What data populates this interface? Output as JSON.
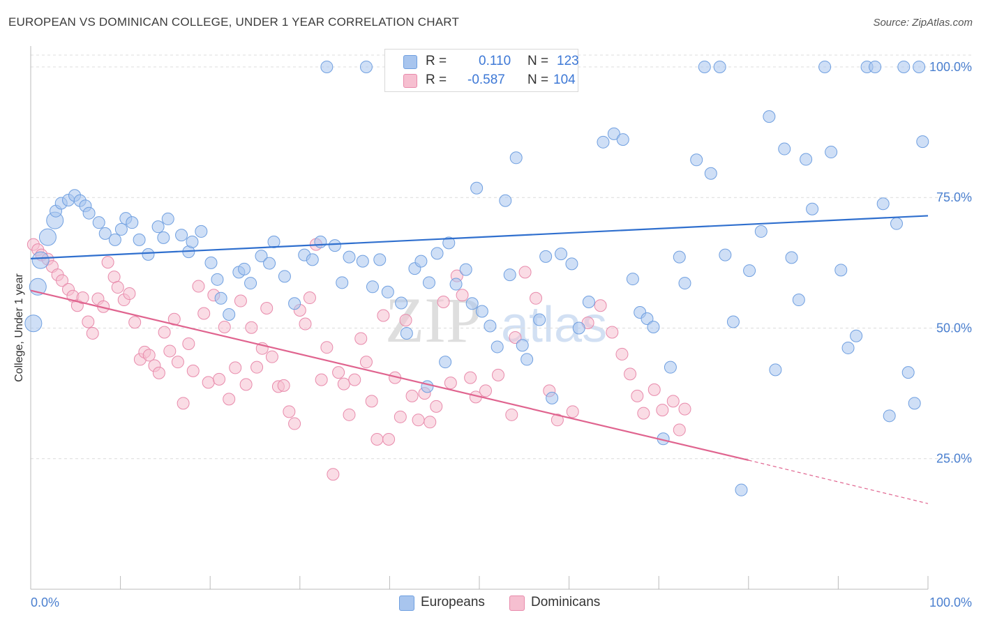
{
  "header": {
    "title": "EUROPEAN VS DOMINICAN COLLEGE, UNDER 1 YEAR CORRELATION CHART",
    "source": "Source: ZipAtlas.com"
  },
  "watermark": {
    "zip": "ZIP",
    "atlas": "atlas"
  },
  "legend": {
    "rows": [
      {
        "r_label": "R =",
        "r_value": "0.110",
        "n_label": "N =",
        "n_value": "123",
        "color": "#a8c5ee",
        "border": "#6f9fe0"
      },
      {
        "r_label": "R =",
        "r_value": "-0.587",
        "n_label": "N =",
        "n_value": "104",
        "color": "#f6bfd0",
        "border": "#e88aab"
      }
    ]
  },
  "bottom_legend": {
    "europeans": {
      "label": "Europeans",
      "color": "#a8c5ee",
      "border": "#6f9fe0"
    },
    "dominicans": {
      "label": "Dominicans",
      "color": "#f6bfd0",
      "border": "#e88aab"
    }
  },
  "chart_data": {
    "type": "scatter",
    "title": "EUROPEAN VS DOMINICAN COLLEGE, UNDER 1 YEAR CORRELATION CHART",
    "xlabel": "",
    "ylabel": "College, Under 1 year",
    "xlim": [
      0,
      100
    ],
    "ylim": [
      0,
      104
    ],
    "x_tick_labels": [
      "0.0%",
      "100.0%"
    ],
    "y_ticks": [
      25,
      50,
      75,
      100
    ],
    "y_tick_labels": [
      "25.0%",
      "50.0%",
      "75.0%",
      "100.0%"
    ],
    "grid": true,
    "colors": {
      "europeans": "#6f9fe0",
      "europeans_fill": "#a8c5ee",
      "europeans_line": "#2f6fce",
      "dominicans": "#e88aab",
      "dominicans_fill": "#f6bfd0",
      "dominicans_line": "#e0648f"
    },
    "series": [
      {
        "name": "Europeans",
        "trend": {
          "x": [
            0,
            100
          ],
          "y": [
            63.3,
            71.5
          ]
        },
        "points": [
          [
            0.3,
            50.9
          ],
          [
            0.8,
            57.9
          ],
          [
            1.1,
            63.0
          ],
          [
            1.9,
            67.4
          ],
          [
            2.7,
            70.6
          ],
          [
            2.8,
            72.4
          ],
          [
            3.4,
            73.9
          ],
          [
            4.2,
            74.5
          ],
          [
            4.9,
            75.4
          ],
          [
            5.5,
            74.4
          ],
          [
            6.1,
            73.4
          ],
          [
            6.5,
            72.0
          ],
          [
            7.6,
            70.2
          ],
          [
            8.3,
            68.1
          ],
          [
            9.4,
            66.9
          ],
          [
            10.1,
            68.9
          ],
          [
            10.6,
            71.0
          ],
          [
            11.3,
            70.2
          ],
          [
            12.1,
            66.9
          ],
          [
            13.1,
            64.1
          ],
          [
            14.2,
            69.4
          ],
          [
            14.8,
            67.3
          ],
          [
            15.3,
            70.9
          ],
          [
            16.8,
            67.8
          ],
          [
            17.6,
            64.6
          ],
          [
            18.0,
            66.5
          ],
          [
            19.0,
            68.5
          ],
          [
            20.1,
            62.5
          ],
          [
            20.8,
            59.3
          ],
          [
            21.2,
            55.7
          ],
          [
            22.1,
            52.6
          ],
          [
            23.2,
            60.7
          ],
          [
            23.8,
            61.3
          ],
          [
            24.5,
            58.6
          ],
          [
            25.7,
            63.8
          ],
          [
            26.6,
            62.4
          ],
          [
            27.1,
            66.5
          ],
          [
            28.3,
            59.9
          ],
          [
            29.4,
            54.7
          ],
          [
            30.5,
            64.0
          ],
          [
            31.4,
            63.1
          ],
          [
            32.3,
            66.5
          ],
          [
            33.9,
            65.8
          ],
          [
            34.7,
            58.7
          ],
          [
            35.5,
            63.6
          ],
          [
            37.0,
            62.8
          ],
          [
            38.1,
            57.9
          ],
          [
            38.9,
            63.1
          ],
          [
            39.8,
            56.9
          ],
          [
            41.3,
            54.8
          ],
          [
            41.9,
            49.0
          ],
          [
            42.8,
            61.4
          ],
          [
            43.5,
            62.8
          ],
          [
            44.4,
            58.7
          ],
          [
            45.3,
            64.3
          ],
          [
            46.6,
            66.3
          ],
          [
            47.4,
            58.4
          ],
          [
            48.5,
            61.2
          ],
          [
            49.2,
            54.7
          ],
          [
            50.3,
            53.2
          ],
          [
            51.2,
            50.4
          ],
          [
            52.0,
            46.4
          ],
          [
            53.4,
            60.2
          ],
          [
            54.8,
            46.7
          ],
          [
            55.3,
            44.0
          ],
          [
            56.7,
            51.6
          ],
          [
            57.4,
            63.7
          ],
          [
            58.1,
            36.6
          ],
          [
            59.1,
            64.2
          ],
          [
            60.3,
            62.3
          ],
          [
            61.1,
            50.0
          ],
          [
            62.2,
            55.0
          ],
          [
            63.8,
            85.6
          ],
          [
            65.0,
            87.2
          ],
          [
            66.0,
            86.1
          ],
          [
            67.1,
            59.4
          ],
          [
            67.9,
            53.0
          ],
          [
            68.7,
            51.8
          ],
          [
            69.4,
            50.2
          ],
          [
            70.5,
            28.8
          ],
          [
            71.3,
            42.5
          ],
          [
            72.3,
            63.6
          ],
          [
            72.9,
            58.6
          ],
          [
            74.2,
            82.2
          ],
          [
            75.1,
            100.0
          ],
          [
            75.8,
            79.6
          ],
          [
            76.8,
            100.0
          ],
          [
            77.4,
            64.0
          ],
          [
            78.3,
            51.2
          ],
          [
            79.2,
            19.0
          ],
          [
            80.1,
            61.0
          ],
          [
            81.4,
            68.5
          ],
          [
            82.3,
            90.5
          ],
          [
            83.0,
            42.0
          ],
          [
            84.0,
            84.3
          ],
          [
            84.8,
            63.5
          ],
          [
            85.6,
            55.4
          ],
          [
            86.4,
            82.3
          ],
          [
            87.1,
            72.8
          ],
          [
            88.5,
            100.0
          ],
          [
            89.2,
            83.7
          ],
          [
            90.3,
            61.1
          ],
          [
            91.1,
            46.2
          ],
          [
            92.0,
            48.5
          ],
          [
            93.2,
            100.0
          ],
          [
            94.1,
            100.0
          ],
          [
            95.0,
            73.8
          ],
          [
            95.7,
            33.2
          ],
          [
            96.5,
            70.0
          ],
          [
            97.3,
            100.0
          ],
          [
            97.8,
            41.5
          ],
          [
            98.5,
            35.6
          ],
          [
            99.0,
            100.0
          ],
          [
            99.4,
            85.7
          ],
          [
            33.0,
            100.0
          ],
          [
            37.4,
            100.0
          ],
          [
            40.7,
            100.0
          ],
          [
            45.7,
            100.0
          ],
          [
            44.2,
            38.8
          ],
          [
            46.2,
            43.5
          ],
          [
            49.7,
            76.8
          ],
          [
            52.9,
            74.4
          ],
          [
            54.1,
            82.6
          ]
        ],
        "sizes": [
          1,
          1,
          1,
          1,
          1,
          1,
          1,
          1,
          1,
          1,
          1,
          1,
          1,
          1,
          1,
          1,
          1,
          1,
          1,
          1,
          1,
          1,
          1,
          1,
          1,
          1,
          1,
          1,
          1,
          1,
          1,
          1,
          1,
          1,
          1,
          1,
          1,
          1,
          1,
          1,
          1,
          1,
          1,
          1,
          1,
          1,
          1,
          1,
          1,
          1,
          1,
          1,
          1,
          1,
          1,
          1,
          1,
          1,
          1,
          1,
          1,
          1,
          1,
          1,
          1,
          1,
          1,
          1,
          1,
          1,
          1,
          1,
          1,
          1,
          1,
          1,
          1,
          1,
          1,
          1,
          1,
          1,
          1,
          1,
          1,
          1,
          1,
          1,
          1,
          1,
          1,
          1,
          1,
          1,
          1,
          1,
          1,
          1,
          1,
          1,
          1,
          1,
          1,
          1,
          1,
          1,
          1,
          1,
          1,
          1,
          1,
          1,
          1,
          1,
          1,
          1,
          1,
          1,
          1,
          1,
          1,
          1,
          1
        ]
      },
      {
        "name": "Dominicans",
        "trend": {
          "x": [
            0,
            80
          ],
          "y": [
            57.2,
            24.7
          ],
          "dashed_to": [
            100,
            16.4
          ]
        },
        "points": [
          [
            0.3,
            66.0
          ],
          [
            0.8,
            65.0
          ],
          [
            1.2,
            64.0
          ],
          [
            1.9,
            63.2
          ],
          [
            2.4,
            61.8
          ],
          [
            3.0,
            60.2
          ],
          [
            3.5,
            59.1
          ],
          [
            4.2,
            57.4
          ],
          [
            4.7,
            56.1
          ],
          [
            5.2,
            54.3
          ],
          [
            5.8,
            55.8
          ],
          [
            6.4,
            51.2
          ],
          [
            6.9,
            49.0
          ],
          [
            7.5,
            55.6
          ],
          [
            8.1,
            54.1
          ],
          [
            8.6,
            62.6
          ],
          [
            9.3,
            59.8
          ],
          [
            9.7,
            57.8
          ],
          [
            10.4,
            55.4
          ],
          [
            11.0,
            56.6
          ],
          [
            11.6,
            51.1
          ],
          [
            12.2,
            44.0
          ],
          [
            12.7,
            45.4
          ],
          [
            13.2,
            44.8
          ],
          [
            13.8,
            42.8
          ],
          [
            14.3,
            41.4
          ],
          [
            14.9,
            49.2
          ],
          [
            15.5,
            45.6
          ],
          [
            16.0,
            51.7
          ],
          [
            16.4,
            43.5
          ],
          [
            17.0,
            35.6
          ],
          [
            17.6,
            47.0
          ],
          [
            18.1,
            41.8
          ],
          [
            18.7,
            58.0
          ],
          [
            19.3,
            52.8
          ],
          [
            19.8,
            39.6
          ],
          [
            20.4,
            56.3
          ],
          [
            21.0,
            40.2
          ],
          [
            21.6,
            50.2
          ],
          [
            22.1,
            36.4
          ],
          [
            22.8,
            42.4
          ],
          [
            23.4,
            55.2
          ],
          [
            24.0,
            39.2
          ],
          [
            24.6,
            50.1
          ],
          [
            25.2,
            42.5
          ],
          [
            25.8,
            46.1
          ],
          [
            26.3,
            53.8
          ],
          [
            26.9,
            44.5
          ],
          [
            27.6,
            38.8
          ],
          [
            28.2,
            39.0
          ],
          [
            28.8,
            34.0
          ],
          [
            29.4,
            31.7
          ],
          [
            30.0,
            53.4
          ],
          [
            30.6,
            50.8
          ],
          [
            31.1,
            55.8
          ],
          [
            31.8,
            66.0
          ],
          [
            32.4,
            40.1
          ],
          [
            33.0,
            46.3
          ],
          [
            33.7,
            22.0
          ],
          [
            34.3,
            41.5
          ],
          [
            34.9,
            39.3
          ],
          [
            35.5,
            33.4
          ],
          [
            36.1,
            40.1
          ],
          [
            36.8,
            48.0
          ],
          [
            37.4,
            43.5
          ],
          [
            38.0,
            36.0
          ],
          [
            38.6,
            28.7
          ],
          [
            39.3,
            52.4
          ],
          [
            39.9,
            28.7
          ],
          [
            40.6,
            40.5
          ],
          [
            41.2,
            33.0
          ],
          [
            41.8,
            51.5
          ],
          [
            42.5,
            37.0
          ],
          [
            43.2,
            32.4
          ],
          [
            43.9,
            37.5
          ],
          [
            44.5,
            32.0
          ],
          [
            45.2,
            35.0
          ],
          [
            46.0,
            55.0
          ],
          [
            46.8,
            39.5
          ],
          [
            47.5,
            60.0
          ],
          [
            48.1,
            56.3
          ],
          [
            49.0,
            40.5
          ],
          [
            49.6,
            36.8
          ],
          [
            50.7,
            38.0
          ],
          [
            52.1,
            41.0
          ],
          [
            53.6,
            33.4
          ],
          [
            54.0,
            48.2
          ],
          [
            55.1,
            60.7
          ],
          [
            56.3,
            55.7
          ],
          [
            57.8,
            38.0
          ],
          [
            58.7,
            32.4
          ],
          [
            60.4,
            34.0
          ],
          [
            62.1,
            51.0
          ],
          [
            63.5,
            54.3
          ],
          [
            64.8,
            49.2
          ],
          [
            65.9,
            45.0
          ],
          [
            66.8,
            41.2
          ],
          [
            67.6,
            37.0
          ],
          [
            68.3,
            33.7
          ],
          [
            69.5,
            38.2
          ],
          [
            70.4,
            34.3
          ],
          [
            71.6,
            36.0
          ],
          [
            72.3,
            30.5
          ],
          [
            72.9,
            34.5
          ]
        ]
      }
    ]
  }
}
